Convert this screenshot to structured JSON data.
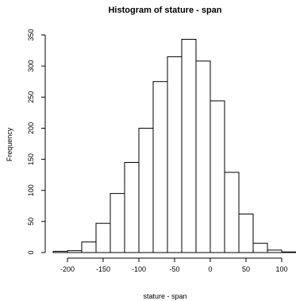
{
  "chart_data": {
    "type": "bar",
    "title": "Histogram of stature - span",
    "xlabel": "stature - span",
    "ylabel": "Frequency",
    "bin_edges": [
      -220,
      -200,
      -180,
      -160,
      -140,
      -120,
      -100,
      -80,
      -60,
      -40,
      -20,
      0,
      20,
      40,
      60,
      80,
      100,
      120
    ],
    "values": [
      2,
      3,
      17,
      47,
      95,
      145,
      200,
      275,
      315,
      343,
      308,
      244,
      129,
      62,
      15,
      4,
      1
    ],
    "x_ticks": [
      -200,
      -150,
      -100,
      -50,
      0,
      50,
      100
    ],
    "y_ticks": [
      0,
      50,
      100,
      150,
      200,
      250,
      300,
      350
    ],
    "xlim": [
      -220,
      120
    ],
    "ylim": [
      0,
      350
    ],
    "grid": false,
    "legend": "none",
    "bar_fill": "#ffffff",
    "bar_stroke": "#000000"
  }
}
